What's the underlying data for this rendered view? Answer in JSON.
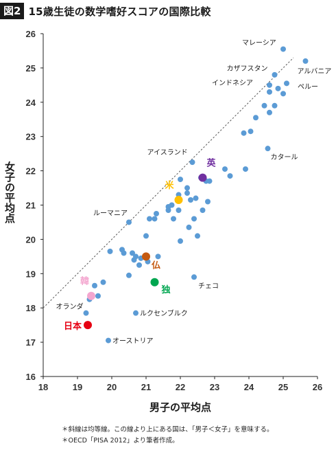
{
  "header": {
    "figure_tag": "図2",
    "title": "15歳生徒の数学嗜好スコアの国際比較"
  },
  "notes": [
    "＊斜線は均等線。この線より上にある国は、「男子＜女子」を意味する。",
    "＊OECD「PISA 2012」より筆者作成。"
  ],
  "colors": {
    "points": "#5b9bd5",
    "diagonal": "#555555",
    "uk": "#7030a0",
    "us": "#ffc000",
    "france": "#c55a11",
    "germany": "#00a650",
    "korea": "#f4a6cf",
    "japan": "#e60012"
  },
  "chart_data": {
    "type": "scatter",
    "xlabel": "男子の平均点",
    "ylabel": "女子の平均点",
    "xlim": [
      18,
      26
    ],
    "ylim": [
      16,
      26
    ],
    "xticks": [
      "18",
      "19",
      "20",
      "21",
      "22",
      "23",
      "24",
      "25",
      "26"
    ],
    "yticks": [
      "16",
      "17",
      "18",
      "19",
      "20",
      "21",
      "22",
      "23",
      "24",
      "25",
      "26"
    ],
    "reference_line": "y = x (均等線)",
    "points": [
      {
        "x": 25.0,
        "y": 25.55,
        "label": "マレーシア"
      },
      {
        "x": 25.65,
        "y": 25.2,
        "label": "アルバニア"
      },
      {
        "x": 24.75,
        "y": 24.8,
        "label": "カザフスタン"
      },
      {
        "x": 24.6,
        "y": 24.5,
        "label": "インドネシア"
      },
      {
        "x": 25.1,
        "y": 24.55,
        "label": "ペルー"
      },
      {
        "x": 24.85,
        "y": 24.4
      },
      {
        "x": 24.6,
        "y": 24.3
      },
      {
        "x": 25.0,
        "y": 24.25
      },
      {
        "x": 24.45,
        "y": 23.9
      },
      {
        "x": 24.75,
        "y": 23.9
      },
      {
        "x": 24.6,
        "y": 23.7
      },
      {
        "x": 24.2,
        "y": 23.55
      },
      {
        "x": 24.05,
        "y": 23.15
      },
      {
        "x": 23.85,
        "y": 23.1
      },
      {
        "x": 24.55,
        "y": 22.65,
        "label": "カタール"
      },
      {
        "x": 22.35,
        "y": 22.25,
        "label": "アイスランド"
      },
      {
        "x": 23.3,
        "y": 22.05
      },
      {
        "x": 23.9,
        "y": 22.05
      },
      {
        "x": 23.45,
        "y": 21.85
      },
      {
        "x": 22.6,
        "y": 21.8
      },
      {
        "x": 22.75,
        "y": 21.7
      },
      {
        "x": 22.85,
        "y": 21.7
      },
      {
        "x": 22.0,
        "y": 21.75
      },
      {
        "x": 22.2,
        "y": 21.5
      },
      {
        "x": 22.2,
        "y": 21.35
      },
      {
        "x": 21.95,
        "y": 21.3
      },
      {
        "x": 22.45,
        "y": 21.2
      },
      {
        "x": 22.3,
        "y": 21.15
      },
      {
        "x": 22.8,
        "y": 21.1
      },
      {
        "x": 21.75,
        "y": 21.0
      },
      {
        "x": 21.65,
        "y": 20.95
      },
      {
        "x": 21.65,
        "y": 20.85
      },
      {
        "x": 21.95,
        "y": 20.85
      },
      {
        "x": 22.65,
        "y": 20.85
      },
      {
        "x": 21.3,
        "y": 20.75
      },
      {
        "x": 21.8,
        "y": 20.6
      },
      {
        "x": 21.1,
        "y": 20.6
      },
      {
        "x": 21.25,
        "y": 20.6
      },
      {
        "x": 22.4,
        "y": 20.6
      },
      {
        "x": 20.5,
        "y": 20.5,
        "label": "ルーマニア"
      },
      {
        "x": 22.25,
        "y": 20.35
      },
      {
        "x": 21.0,
        "y": 20.1
      },
      {
        "x": 22.5,
        "y": 20.1
      },
      {
        "x": 22.0,
        "y": 19.95
      },
      {
        "x": 19.95,
        "y": 19.65
      },
      {
        "x": 20.3,
        "y": 19.7
      },
      {
        "x": 20.35,
        "y": 19.6
      },
      {
        "x": 20.6,
        "y": 19.6
      },
      {
        "x": 20.7,
        "y": 19.5
      },
      {
        "x": 20.85,
        "y": 19.45
      },
      {
        "x": 21.35,
        "y": 19.5
      },
      {
        "x": 20.65,
        "y": 19.4
      },
      {
        "x": 21.05,
        "y": 19.35
      },
      {
        "x": 20.8,
        "y": 19.25
      },
      {
        "x": 20.5,
        "y": 18.95
      },
      {
        "x": 19.75,
        "y": 18.75
      },
      {
        "x": 19.5,
        "y": 18.65
      },
      {
        "x": 22.4,
        "y": 18.9,
        "label": "チェコ"
      },
      {
        "x": 19.6,
        "y": 18.35
      },
      {
        "x": 19.35,
        "y": 18.25
      },
      {
        "x": 19.25,
        "y": 17.85,
        "label": "オランダ"
      },
      {
        "x": 20.7,
        "y": 17.85,
        "label": "ルクセンブルク"
      },
      {
        "x": 19.9,
        "y": 17.05,
        "label": "オーストリア"
      }
    ],
    "highlighted": [
      {
        "x": 22.65,
        "y": 21.8,
        "label": "英",
        "color": "#7030a0"
      },
      {
        "x": 21.95,
        "y": 21.15,
        "label": "米",
        "color": "#ffc000"
      },
      {
        "x": 21.0,
        "y": 19.5,
        "label": "仏",
        "color": "#c55a11"
      },
      {
        "x": 21.25,
        "y": 18.75,
        "label": "独",
        "color": "#00a650"
      },
      {
        "x": 19.4,
        "y": 18.35,
        "label": "韓",
        "color": "#f4a6cf"
      },
      {
        "x": 19.3,
        "y": 17.5,
        "label": "日本",
        "color": "#e60012"
      }
    ]
  }
}
